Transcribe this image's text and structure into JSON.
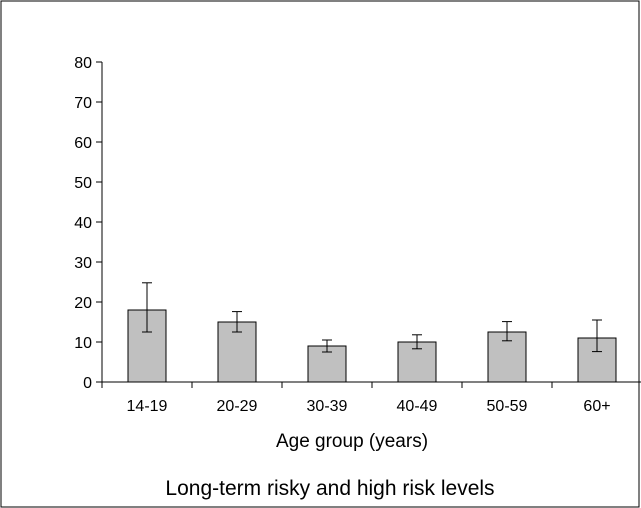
{
  "chart_data": {
    "type": "bar",
    "title": "",
    "caption": "Long-term risky and high risk levels",
    "xlabel": "Age group (years)",
    "ylabel": "",
    "categories": [
      "14-19",
      "20-29",
      "30-39",
      "40-49",
      "50-59",
      "60+"
    ],
    "values": [
      18,
      15,
      9,
      10,
      12.5,
      11
    ],
    "error_low": [
      12.5,
      12.5,
      7.5,
      8.3,
      10.3,
      7.6
    ],
    "error_high": [
      24.8,
      17.6,
      10.5,
      11.8,
      15.1,
      15.5
    ],
    "ylim": [
      0,
      80
    ],
    "yticks": [
      "0",
      "10",
      "20",
      "30",
      "40",
      "50",
      "60",
      "70",
      "80"
    ],
    "grid": false,
    "colors": {
      "bar_fill": "#c0c0c0",
      "bar_stroke": "#000000",
      "axis": "#000000",
      "frame": "#000000"
    }
  }
}
